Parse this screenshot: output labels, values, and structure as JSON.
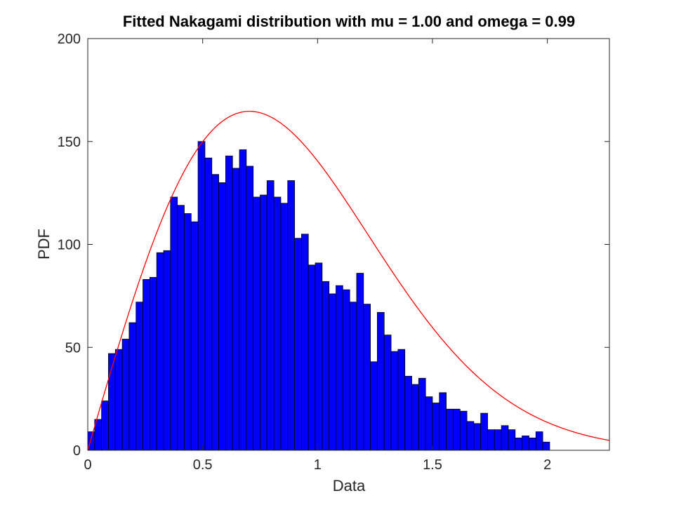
{
  "chart_data": {
    "type": "bar",
    "title": "Fitted Nakagami distribution with mu = 1.00 and omega = 0.99",
    "xlabel": "Data",
    "ylabel": "PDF",
    "xlim": [
      0,
      2.27
    ],
    "ylim": [
      0,
      200
    ],
    "xticks": [
      0,
      0.5,
      1,
      1.5,
      2
    ],
    "xtick_labels": [
      "0",
      "0.5",
      "1",
      "1.5",
      "2"
    ],
    "yticks": [
      0,
      50,
      100,
      150,
      200
    ],
    "ytick_labels": [
      "0",
      "50",
      "100",
      "150",
      "200"
    ],
    "grid": false,
    "bins": {
      "start": 0.0,
      "width": 0.03,
      "counts": [
        9,
        15,
        24,
        47,
        49,
        54,
        62,
        72,
        83,
        84,
        96,
        97,
        123,
        119,
        115,
        111,
        150,
        142,
        134,
        130,
        143,
        137,
        146,
        138,
        123,
        124,
        131,
        123,
        120,
        131,
        103,
        105,
        90,
        91,
        82,
        76,
        80,
        78,
        72,
        86,
        71,
        43,
        67,
        56,
        48,
        49,
        36,
        32,
        35,
        26,
        23,
        28,
        20,
        20,
        19,
        14,
        13,
        18,
        10,
        10,
        12,
        10,
        6,
        7,
        6,
        9,
        4
      ]
    },
    "series": [
      {
        "kind": "histogram",
        "color": "#0000ff",
        "edge_color": "#000000"
      },
      {
        "kind": "fitted-curve",
        "color": "#ff0000",
        "distribution": "Nakagami",
        "mu": 1.0,
        "omega": 0.99,
        "scale": 191
      }
    ]
  }
}
